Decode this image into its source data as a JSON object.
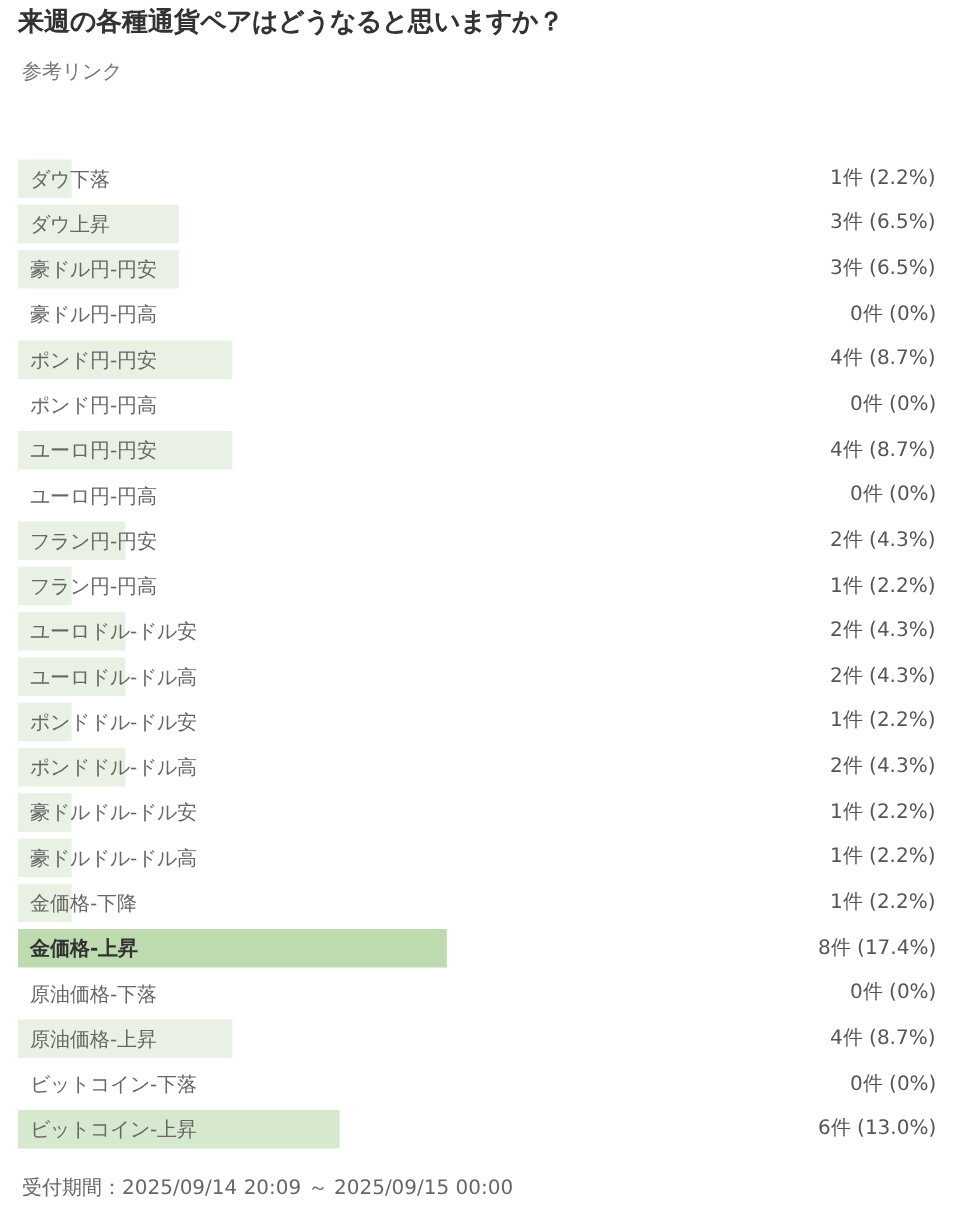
{
  "chart_data": {
    "type": "bar",
    "orientation": "horizontal",
    "title": "来週の各種通貨ペアはどうなると思いますか？",
    "categories": [
      "ダウ下落",
      "ダウ上昇",
      "豪ドル円-円安",
      "豪ドル円-円高",
      "ポンド円-円安",
      "ポンド円-円高",
      "ユーロ円-円安",
      "ユーロ円-円高",
      "フラン円-円安",
      "フラン円-円高",
      "ユーロドル-ドル安",
      "ユーロドル-ドル高",
      "ポンドドル-ドル安",
      "ポンドドル-ドル高",
      "豪ドルドル-ドル安",
      "豪ドルドル-ドル高",
      "金価格-下降",
      "金価格-上昇",
      "原油価格-下落",
      "原油価格-上昇",
      "ビットコイン-下落",
      "ビットコイン-上昇"
    ],
    "values": [
      1,
      3,
      3,
      0,
      4,
      0,
      4,
      0,
      2,
      1,
      2,
      2,
      1,
      2,
      1,
      1,
      1,
      8,
      0,
      4,
      0,
      6
    ],
    "value_labels": [
      "1件 (2.2%)",
      "3件 (6.5%)",
      "3件 (6.5%)",
      "0件 (0%)",
      "4件 (8.7%)",
      "0件 (0%)",
      "4件 (8.7%)",
      "0件 (0%)",
      "2件 (4.3%)",
      "1件 (2.2%)",
      "2件 (4.3%)",
      "2件 (4.3%)",
      "1件 (2.2%)",
      "2件 (4.3%)",
      "1件 (2.2%)",
      "1件 (2.2%)",
      "1件 (2.2%)",
      "8件 (17.4%)",
      "0件 (0%)",
      "4件 (8.7%)",
      "0件 (0%)",
      "6件 (13.0%)"
    ],
    "colors": [
      "#e8f1e3",
      "#e8f1e3",
      "#e8f1e3",
      "#e8f1e3",
      "#e8f1e3",
      "#e8f1e3",
      "#e8f1e3",
      "#e8f1e3",
      "#e8f1e3",
      "#e8f1e3",
      "#e8f1e3",
      "#e8f1e3",
      "#e8f1e3",
      "#e8f1e3",
      "#e8f1e3",
      "#e8f1e3",
      "#e8f1e3",
      "#bddbae",
      "#e8f1e3",
      "#e8f1e3",
      "#e8f1e3",
      "#d6e8cd"
    ],
    "annotations": [
      "参考リンク",
      "受付期間：2025/09/14 20:09 ～ 2025/09/15 00:00"
    ],
    "tick_labels": "y"
  }
}
